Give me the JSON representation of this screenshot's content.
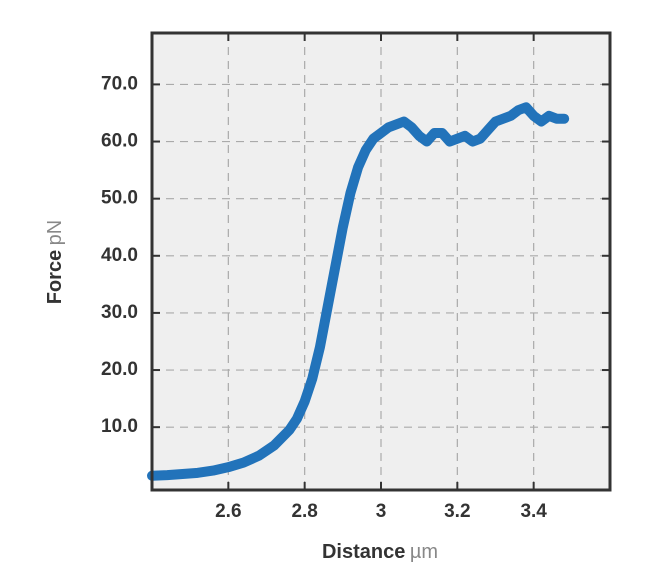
{
  "chart_data": {
    "type": "line",
    "x_label": "Distance",
    "x_unit": "µm",
    "y_label": "Force",
    "y_unit": "pN",
    "x": [
      2.4,
      2.44,
      2.48,
      2.52,
      2.56,
      2.6,
      2.64,
      2.68,
      2.72,
      2.76,
      2.78,
      2.8,
      2.82,
      2.84,
      2.86,
      2.88,
      2.9,
      2.92,
      2.94,
      2.96,
      2.98,
      3.0,
      3.02,
      3.04,
      3.06,
      3.08,
      3.1,
      3.12,
      3.14,
      3.16,
      3.18,
      3.2,
      3.22,
      3.24,
      3.26,
      3.28,
      3.3,
      3.32,
      3.34,
      3.36,
      3.38,
      3.4,
      3.42,
      3.44,
      3.46,
      3.48
    ],
    "values": [
      1.5,
      1.6,
      1.8,
      2.0,
      2.4,
      3.0,
      3.8,
      5.0,
      6.8,
      9.5,
      11.5,
      14.5,
      18.5,
      24,
      31,
      38,
      45,
      51,
      55.5,
      58.5,
      60.5,
      61.5,
      62.5,
      63,
      63.5,
      62.5,
      61,
      60,
      61.5,
      61.5,
      60,
      60.5,
      61,
      60,
      60.5,
      62,
      63.5,
      64,
      64.5,
      65.5,
      66,
      64.5,
      63.5,
      64.5,
      64,
      64
    ],
    "color": "#2273ba",
    "xlim": [
      2.4,
      3.6
    ],
    "ylim": [
      -1,
      79
    ],
    "xticks": [
      2.6,
      2.8,
      3.0,
      3.2,
      3.4
    ],
    "yticks": [
      {
        "value": 10,
        "label": "10.0"
      },
      {
        "value": 20,
        "label": "20.0"
      },
      {
        "value": 30,
        "label": "30.0"
      },
      {
        "value": 40,
        "label": "40.0"
      },
      {
        "value": 50,
        "label": "50.0"
      },
      {
        "value": 60,
        "label": "60.0"
      },
      {
        "value": 70,
        "label": "70.0"
      }
    ],
    "grid": true
  }
}
